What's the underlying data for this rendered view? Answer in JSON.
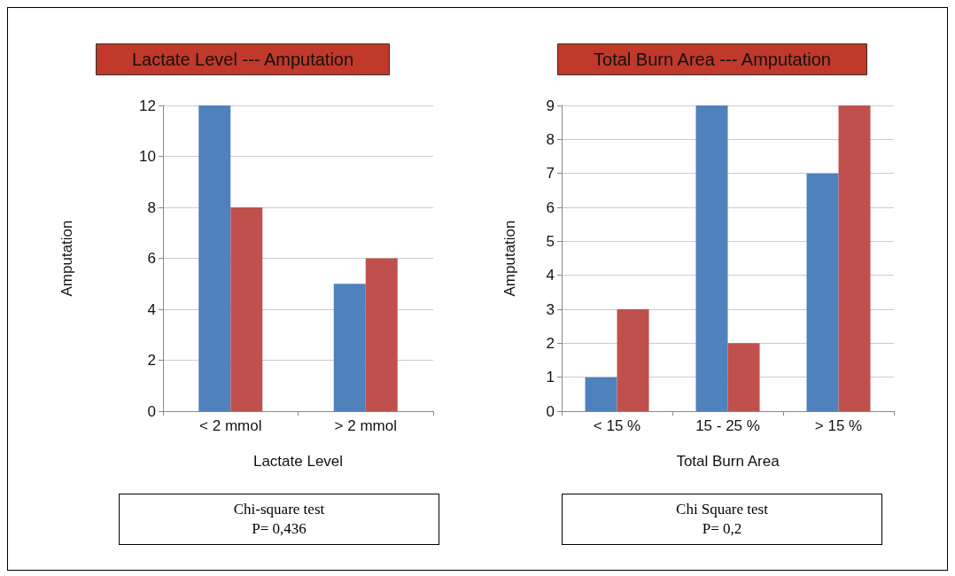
{
  "chart_data": [
    {
      "type": "bar",
      "title": "Lactate Level --- Amputation",
      "xlabel": "Lactate Level",
      "ylabel": "Amputation",
      "categories": [
        "< 2 mmol",
        "> 2 mmol"
      ],
      "series": [
        {
          "color": "#4f81bd",
          "values": [
            12,
            5
          ]
        },
        {
          "color": "#c0504d",
          "values": [
            8,
            6
          ]
        }
      ],
      "ylim": [
        0,
        12
      ],
      "yticks": [
        0,
        2,
        4,
        6,
        8,
        10,
        12
      ],
      "grid": "y",
      "annotations": [
        "Chi-square test",
        "P= 0,436"
      ]
    },
    {
      "type": "bar",
      "title": "Total Burn Area --- Amputation",
      "xlabel": "Total Burn Area",
      "ylabel": "Amputation",
      "categories": [
        "< 15 %",
        "15 - 25 %",
        "> 15 %"
      ],
      "series": [
        {
          "color": "#4f81bd",
          "values": [
            1,
            9,
            7
          ]
        },
        {
          "color": "#c0504d",
          "values": [
            3,
            2,
            9
          ]
        }
      ],
      "ylim": [
        0,
        9
      ],
      "yticks": [
        0,
        1,
        2,
        3,
        4,
        5,
        6,
        7,
        8,
        9
      ],
      "grid": "y",
      "annotations": [
        "Chi Square test",
        "P= 0,2"
      ]
    }
  ]
}
